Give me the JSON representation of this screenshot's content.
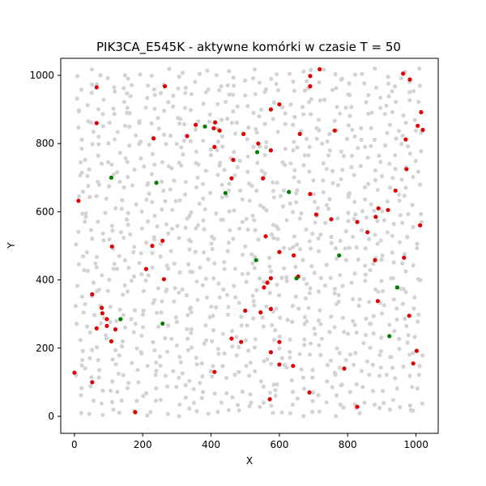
{
  "chart_data": {
    "type": "scatter",
    "title": "PIK3CA_E545K - aktywne komórki w czasie T = 50",
    "xlabel": "X",
    "ylabel": "Y",
    "xlim": [
      -40,
      1065
    ],
    "ylim": [
      -50,
      1050
    ],
    "xticks": [
      0,
      200,
      400,
      600,
      800,
      1000
    ],
    "yticks": [
      0,
      200,
      400,
      600,
      800,
      1000
    ],
    "grid": false,
    "legend": "none",
    "background_points": {
      "color": "#d3d3d3",
      "count": 1100,
      "x_range": [
        0,
        1020
      ],
      "y_range": [
        0,
        1020
      ]
    },
    "series": [
      {
        "color": "#e00000",
        "points": [
          [
            65,
            965
          ],
          [
            265,
            968
          ],
          [
            690,
            998
          ],
          [
            718,
            1018
          ],
          [
            690,
            968
          ],
          [
            962,
            1005
          ],
          [
            982,
            988
          ],
          [
            600,
            915
          ],
          [
            575,
            900
          ],
          [
            1015,
            892
          ],
          [
            65,
            860
          ],
          [
            355,
            855
          ],
          [
            412,
            862
          ],
          [
            408,
            845
          ],
          [
            425,
            838
          ],
          [
            1005,
            852
          ],
          [
            1020,
            840
          ],
          [
            232,
            815
          ],
          [
            330,
            822
          ],
          [
            495,
            828
          ],
          [
            660,
            828
          ],
          [
            762,
            838
          ],
          [
            970,
            812
          ],
          [
            410,
            790
          ],
          [
            538,
            800
          ],
          [
            575,
            780
          ],
          [
            465,
            752
          ],
          [
            972,
            725
          ],
          [
            460,
            698
          ],
          [
            552,
            698
          ],
          [
            690,
            652
          ],
          [
            940,
            662
          ],
          [
            12,
            632
          ],
          [
            708,
            592
          ],
          [
            890,
            610
          ],
          [
            918,
            605
          ],
          [
            752,
            578
          ],
          [
            828,
            570
          ],
          [
            1012,
            560
          ],
          [
            858,
            540
          ],
          [
            882,
            585
          ],
          [
            560,
            528
          ],
          [
            110,
            498
          ],
          [
            228,
            500
          ],
          [
            258,
            515
          ],
          [
            600,
            482
          ],
          [
            642,
            472
          ],
          [
            965,
            465
          ],
          [
            880,
            458
          ],
          [
            210,
            432
          ],
          [
            262,
            402
          ],
          [
            655,
            410
          ],
          [
            575,
            405
          ],
          [
            565,
            392
          ],
          [
            555,
            378
          ],
          [
            52,
            358
          ],
          [
            888,
            338
          ],
          [
            80,
            318
          ],
          [
            82,
            302
          ],
          [
            500,
            310
          ],
          [
            545,
            305
          ],
          [
            575,
            315
          ],
          [
            65,
            258
          ],
          [
            95,
            285
          ],
          [
            95,
            265
          ],
          [
            120,
            255
          ],
          [
            980,
            295
          ],
          [
            460,
            228
          ],
          [
            488,
            218
          ],
          [
            600,
            218
          ],
          [
            108,
            220
          ],
          [
            575,
            188
          ],
          [
            1002,
            192
          ],
          [
            790,
            140
          ],
          [
            600,
            152
          ],
          [
            640,
            148
          ],
          [
            410,
            130
          ],
          [
            0,
            128
          ],
          [
            992,
            155
          ],
          [
            52,
            100
          ],
          [
            688,
            70
          ],
          [
            572,
            50
          ],
          [
            828,
            28
          ],
          [
            178,
            12
          ]
        ]
      },
      {
        "color": "#008000",
        "points": [
          [
            382,
            850
          ],
          [
            535,
            775
          ],
          [
            108,
            700
          ],
          [
            240,
            685
          ],
          [
            442,
            655
          ],
          [
            628,
            658
          ],
          [
            532,
            458
          ],
          [
            775,
            472
          ],
          [
            650,
            405
          ],
          [
            945,
            378
          ],
          [
            135,
            285
          ],
          [
            258,
            272
          ],
          [
            922,
            235
          ]
        ]
      }
    ]
  }
}
